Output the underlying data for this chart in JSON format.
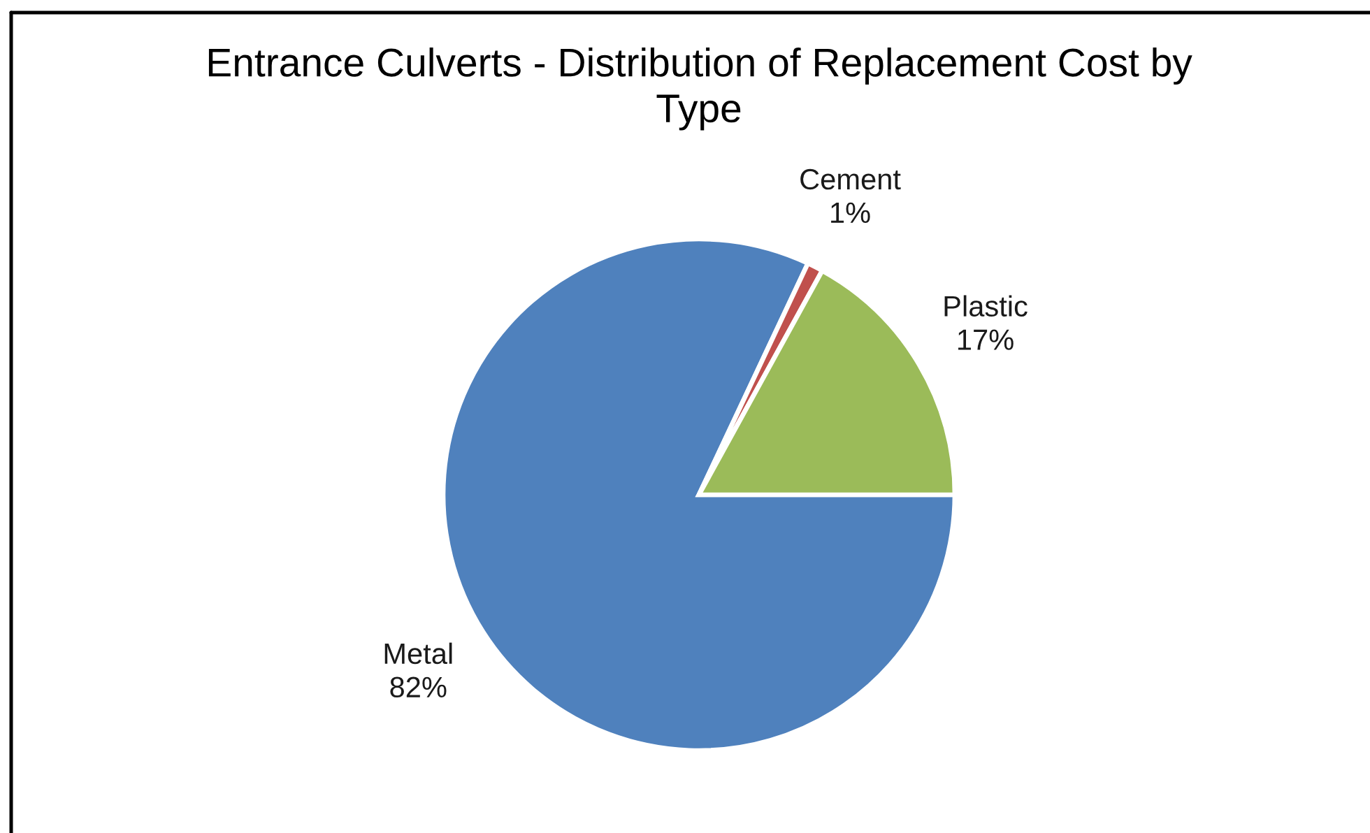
{
  "chart_data": {
    "type": "pie",
    "title": "Entrance Culverts - Distribution of Replacement Cost by Type",
    "categories": [
      "Metal",
      "Cement",
      "Plastic"
    ],
    "values": [
      82,
      1,
      17
    ],
    "value_labels": [
      "82%",
      "1%",
      "17%"
    ],
    "colors": [
      "#4f81bd",
      "#c0504d",
      "#9bbb59"
    ]
  }
}
